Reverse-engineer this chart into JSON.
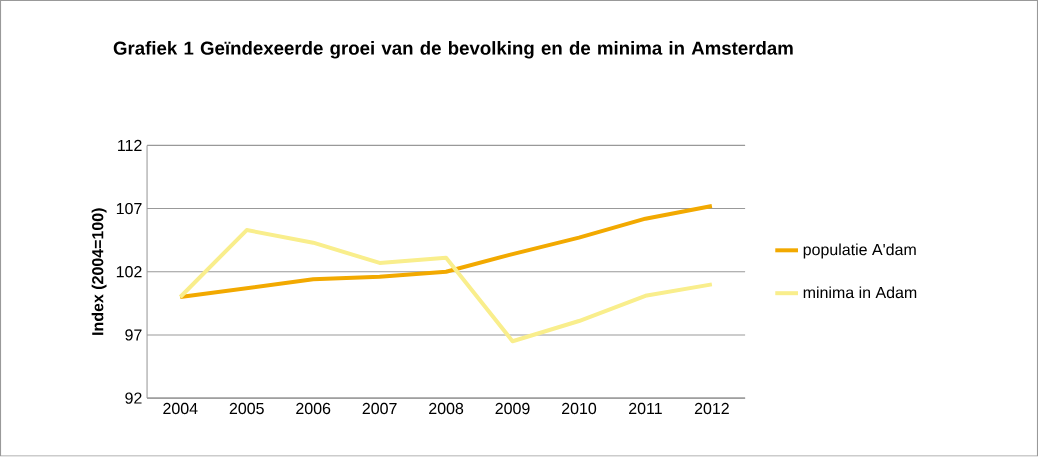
{
  "chart_data": {
    "type": "line",
    "title": "Grafiek 1 Geïndexeerde groei van de bevolking en de minima in Amsterdam",
    "ylabel": "Index (2004=100)",
    "categories": [
      "2004",
      "2005",
      "2006",
      "2007",
      "2008",
      "2009",
      "2010",
      "2011",
      "2012"
    ],
    "series": [
      {
        "name": "populatie A'dam",
        "color": "#f2a900",
        "values": [
          100,
          100.7,
          101.4,
          101.6,
          102.0,
          103.4,
          104.7,
          106.2,
          107.2
        ]
      },
      {
        "name": "minima in Adam",
        "color": "#f9ee8c",
        "values": [
          100,
          105.3,
          104.3,
          102.7,
          103.1,
          96.5,
          98.1,
          100.1,
          101.0
        ]
      }
    ],
    "ylim": [
      92,
      112
    ],
    "yticks": [
      92,
      97,
      102,
      107,
      112
    ],
    "grid": "y",
    "legend": "right",
    "marker": "none",
    "line_style": "solid"
  }
}
